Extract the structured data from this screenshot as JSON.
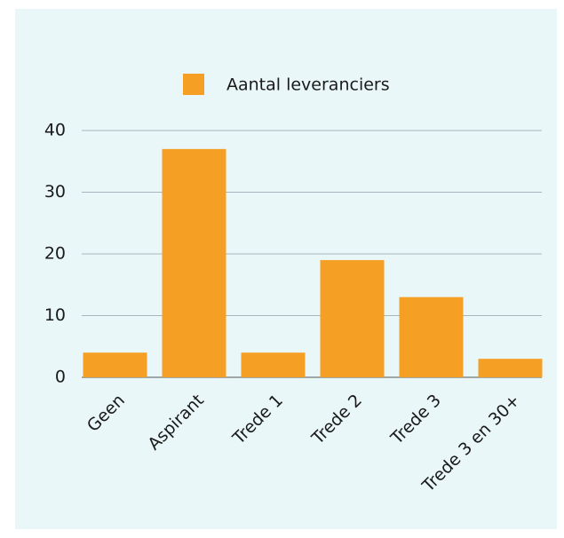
{
  "chart_data": {
    "type": "bar",
    "categories": [
      "Geen",
      "Aspirant",
      "Trede 1",
      "Trede 2",
      "Trede 3",
      "Trede 3 en 30+"
    ],
    "series": [
      {
        "name": "Aantal leveranciers",
        "color": "#f5a024",
        "values": [
          4,
          37,
          4,
          19,
          13,
          3
        ]
      }
    ],
    "ylim": [
      0,
      40
    ],
    "yticks": [
      0,
      10,
      20,
      30,
      40
    ],
    "grid": true,
    "legend": "top"
  }
}
